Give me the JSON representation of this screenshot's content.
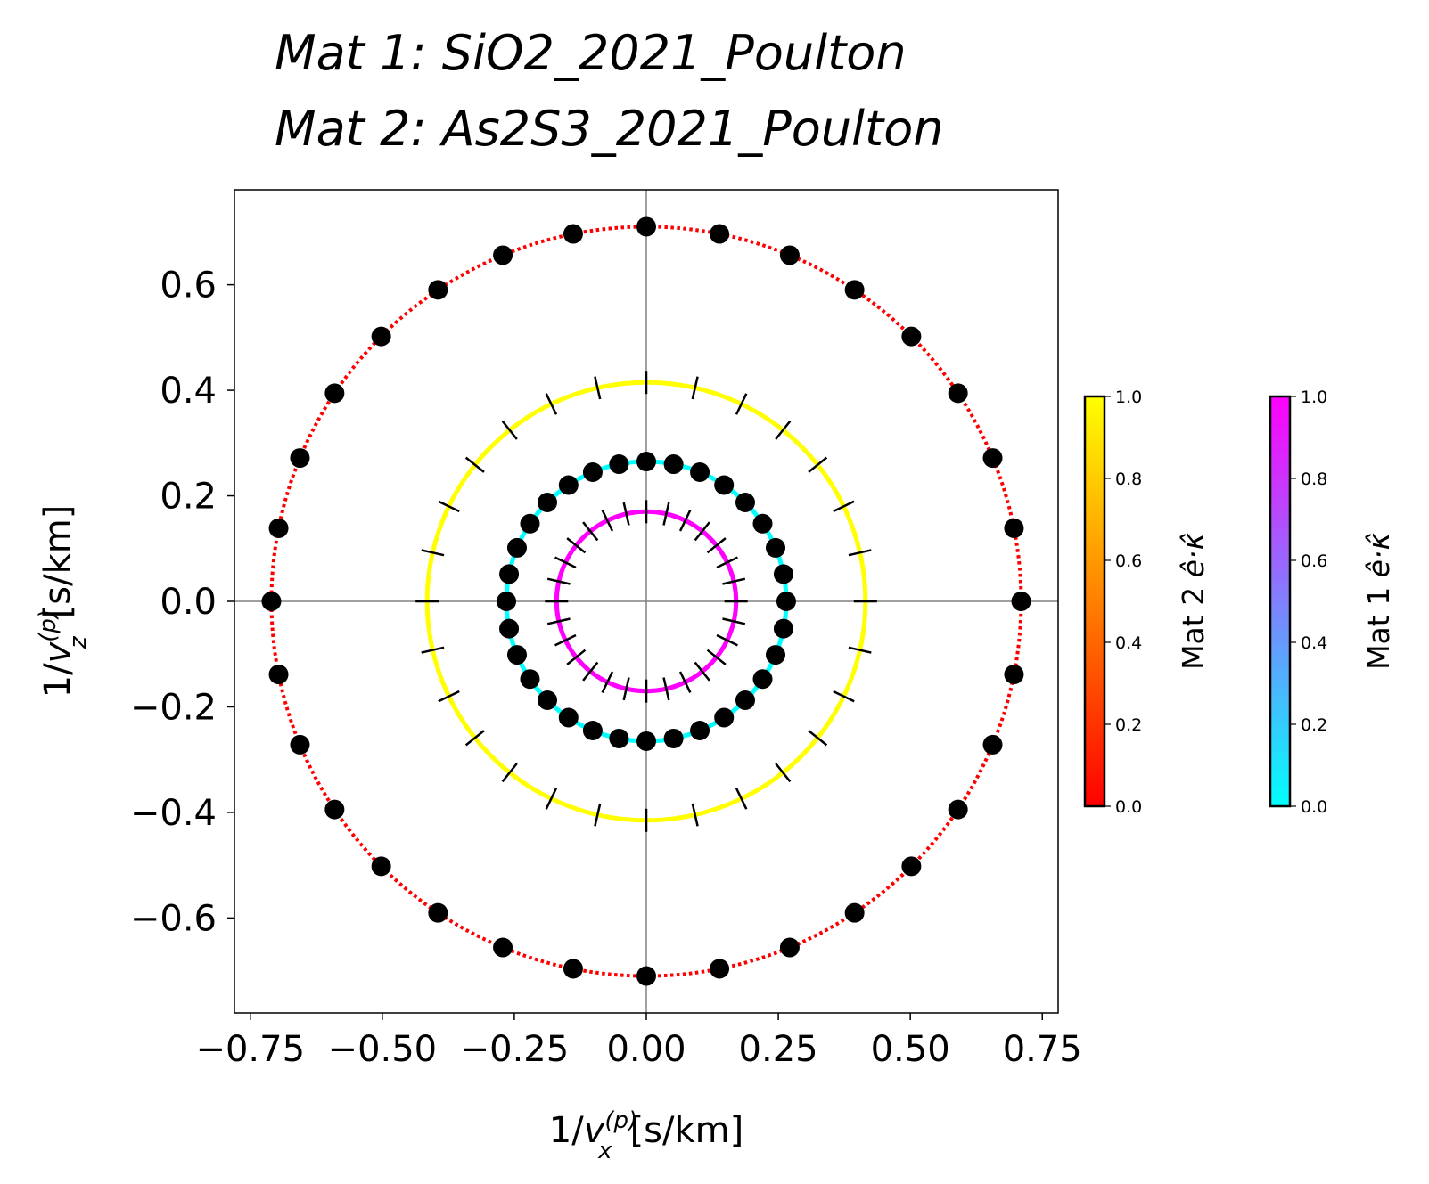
{
  "title": {
    "line1": "Mat 1: SiO2_2021_Poulton",
    "line2": "Mat 2: As2S3_2021_Poulton"
  },
  "chart_data": {
    "type": "scatter",
    "subtype": "polar slowness curves",
    "xlabel_prefix": "1/",
    "xlabel_var": "v",
    "xlabel_sup": "(p)",
    "xlabel_sub": "x",
    "xlabel_unit": "[s/km]",
    "ylabel_prefix": "1/",
    "ylabel_var": "v",
    "ylabel_sup": "(p)",
    "ylabel_sub": "z",
    "ylabel_unit": "[s/km]",
    "xlim": [
      -0.78,
      0.78
    ],
    "ylim": [
      -0.78,
      0.78
    ],
    "xticks": [
      -0.75,
      -0.5,
      -0.25,
      0.0,
      0.25,
      0.5,
      0.75
    ],
    "xtick_labels": [
      "−0.75",
      "−0.50",
      "−0.25",
      "0.00",
      "0.25",
      "0.50",
      "0.75"
    ],
    "yticks": [
      -0.6,
      -0.4,
      -0.2,
      0.0,
      0.2,
      0.4,
      0.6
    ],
    "ytick_labels": [
      "−0.6",
      "−0.4",
      "−0.2",
      "0.0",
      "0.2",
      "0.4",
      "0.6"
    ],
    "grid": false,
    "zero_lines": true,
    "series": [
      {
        "radius": 0.71,
        "color": "#ff0000",
        "line_style": "dotted",
        "marker": "dot",
        "marker_count": 32,
        "marker_offset_deg": 0
      },
      {
        "radius": 0.415,
        "color": "#ffff00",
        "line_style": "solid",
        "marker": "tick",
        "marker_count": 28,
        "marker_offset_deg": 0
      },
      {
        "radius": 0.265,
        "color": "#00ffff",
        "line_style": "solid",
        "marker": "dot",
        "marker_count": 32,
        "marker_offset_deg": 0
      },
      {
        "radius": 0.17,
        "color": "#ff00ff",
        "line_style": "solid",
        "marker": "tick",
        "marker_count": 28,
        "marker_offset_deg": 0
      }
    ],
    "colorbars": [
      {
        "label_text": "Mat 2",
        "label_math": "ê·κ̂",
        "colors": [
          "#ff0000",
          "#ff8000",
          "#ffff00"
        ],
        "ticks": [
          "0.0",
          "0.2",
          "0.4",
          "0.6",
          "0.8",
          "1.0"
        ]
      },
      {
        "label_text": "Mat 1",
        "label_math": "ê·κ̂",
        "colors": [
          "#00ffff",
          "#8080ff",
          "#ff00ff"
        ],
        "ticks": [
          "0.0",
          "0.2",
          "0.4",
          "0.6",
          "0.8",
          "1.0"
        ]
      }
    ]
  }
}
